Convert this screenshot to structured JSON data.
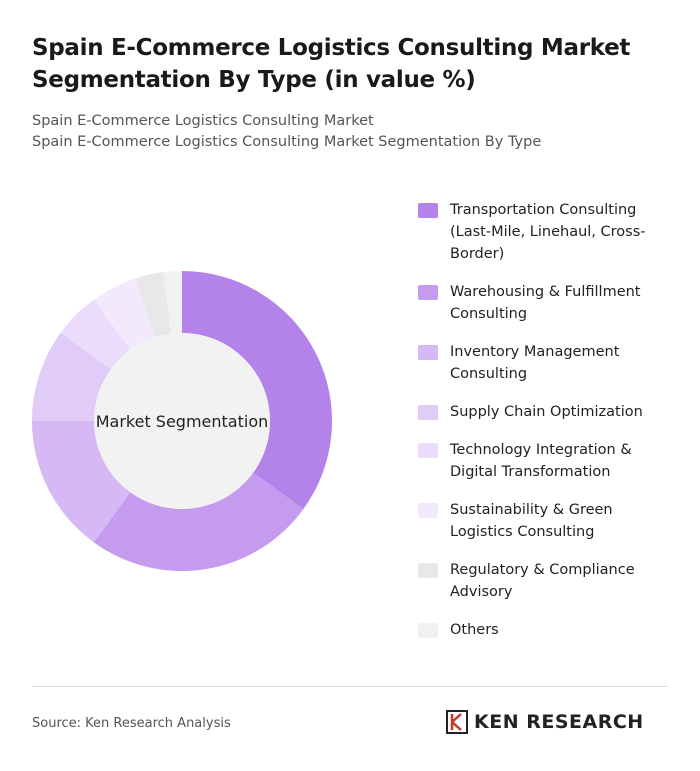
{
  "chart_data": {
    "type": "donut",
    "title": "Spain E-Commerce Logistics Consulting Market Segmentation By Type (in value %)",
    "subtitle": [
      "Spain E-Commerce Logistics Consulting Market",
      "Spain E-Commerce Logistics Consulting Market Segmentation By Type"
    ],
    "center_label": "Market Segmentation",
    "categories": [
      "Transportation Consulting (Last-Mile, Linehaul, Cross-Border)",
      "Warehousing & Fulfillment Consulting",
      "Inventory Management Consulting",
      "Supply Chain Optimization",
      "Technology Integration & Digital Transformation",
      "Sustainability & Green Logistics Consulting",
      "Regulatory & Compliance Advisory",
      "Others"
    ],
    "values": [
      35,
      25,
      15,
      10,
      5,
      5,
      3,
      2
    ],
    "colors": [
      "#b383ea",
      "#c49bef",
      "#d5b8f4",
      "#e1cbf7",
      "#eadcfa",
      "#f2eafc",
      "#e8e8e8",
      "#f1f1f1"
    ],
    "source": "Source: Ken Research Analysis"
  },
  "logo": "KEN RESEARCH"
}
